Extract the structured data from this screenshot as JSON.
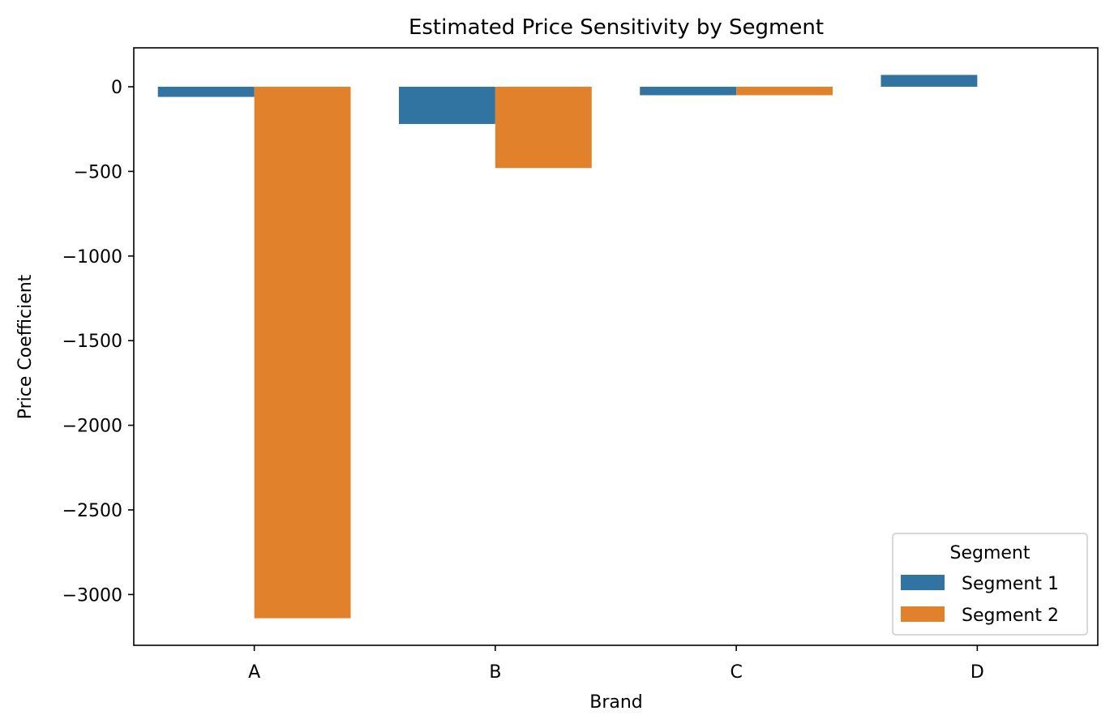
{
  "chart_data": {
    "type": "bar",
    "title": "Estimated Price Sensitivity by Segment",
    "xlabel": "Brand",
    "ylabel": "Price Coefficient",
    "categories": [
      "A",
      "B",
      "C",
      "D"
    ],
    "series": [
      {
        "name": "Segment 1",
        "color": "#3274a1",
        "values": [
          -60,
          -220,
          -50,
          70
        ]
      },
      {
        "name": "Segment 2",
        "color": "#e1812c",
        "values": [
          -3140,
          -480,
          -50,
          null
        ]
      }
    ],
    "ylim": [
      -3300,
      230
    ],
    "yticks": [
      0,
      -500,
      -1000,
      -1500,
      -2000,
      -2500,
      -3000
    ],
    "ytick_labels": [
      "0",
      "−500",
      "−1000",
      "−1500",
      "−2000",
      "−2500",
      "−3000"
    ],
    "grid": false,
    "legend": {
      "title": "Segment",
      "position": "lower-right"
    }
  }
}
